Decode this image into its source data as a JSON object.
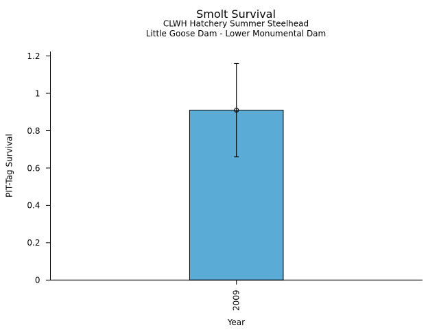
{
  "figure": {
    "background_color": "#ffffff"
  },
  "chart_data": {
    "type": "bar",
    "title": "Smolt Survival",
    "subtitle_lines": [
      "CLWH Hatchery Summer Steelhead",
      "Little Goose Dam - Lower Monumental Dam"
    ],
    "xlabel": "Year",
    "ylabel": "PIT-Tag Survival",
    "categories": [
      "2009"
    ],
    "values": [
      0.91
    ],
    "error_bars": [
      {
        "low": 0.66,
        "high": 1.16
      }
    ],
    "marker": "open-circle",
    "yticks": [
      0,
      0.2,
      0.4,
      0.6,
      0.8,
      1.0,
      1.2
    ],
    "ylim": [
      0,
      1.224
    ],
    "grid": false,
    "legend_position": "none",
    "bar_color": "#5AABD6",
    "bar_edge_color": "#000000",
    "error_bar_color": "#000000",
    "axis_color": "#000000",
    "text_color": "#000000"
  }
}
